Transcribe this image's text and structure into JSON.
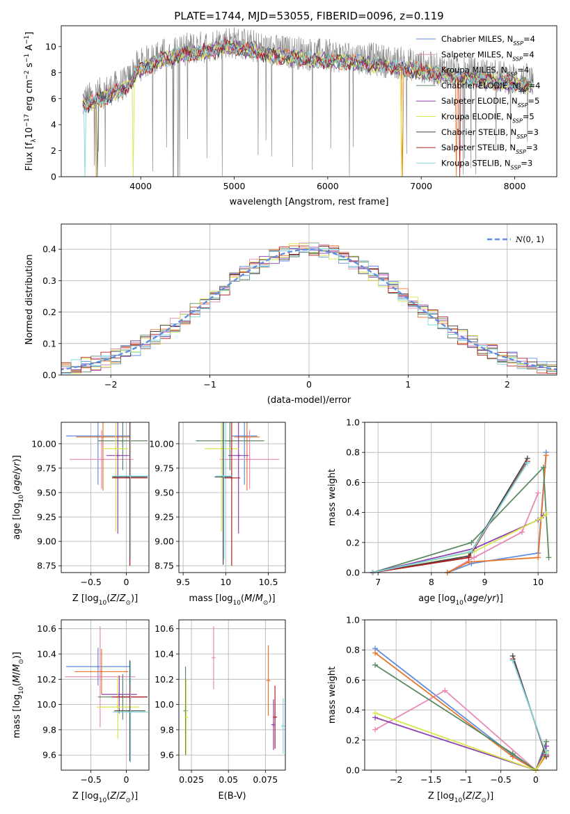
{
  "figure": {
    "title": "PLATE=1744, MJD=53055, FIBERID=0096, z=0.119"
  },
  "chart_data": [
    {
      "id": "spectrum",
      "type": "line",
      "xlabel": "wavelength [Angstrom, rest frame]",
      "ylabel": "Flux [fλ10⁻¹⁷ erg cm⁻² s⁻¹ A⁻¹]",
      "xlim": [
        3150,
        8450
      ],
      "ylim": [
        0,
        11.6
      ],
      "xticks": [
        4000,
        5000,
        6000,
        7000,
        8000
      ],
      "yticks": [
        0,
        2,
        4,
        6,
        8,
        10
      ],
      "data_range": [
        3380,
        8200
      ],
      "continuum": [
        [
          3380,
          5.9
        ],
        [
          3450,
          6.0
        ],
        [
          3550,
          6.3
        ],
        [
          3700,
          6.8
        ],
        [
          3850,
          7.2
        ],
        [
          3950,
          8.4
        ],
        [
          4050,
          8.8
        ],
        [
          4200,
          9.3
        ],
        [
          4400,
          9.7
        ],
        [
          4700,
          10.0
        ],
        [
          4900,
          10.4
        ],
        [
          5100,
          10.2
        ],
        [
          5400,
          9.7
        ],
        [
          5700,
          9.5
        ],
        [
          6000,
          9.3
        ],
        [
          6300,
          9.2
        ],
        [
          6600,
          8.9
        ],
        [
          6900,
          8.6
        ],
        [
          7200,
          8.2
        ],
        [
          7500,
          8.0
        ],
        [
          7800,
          7.7
        ],
        [
          8000,
          7.5
        ],
        [
          8200,
          7.4
        ]
      ],
      "legend": [
        {
          "label": "Chabrier MILES, N",
          "sub": "SSP",
          "suffix": "=4",
          "color": "#5f8ee0"
        },
        {
          "label": "Salpeter MILES, N",
          "sub": "SSP",
          "suffix": "=4",
          "color": "#e88ab8"
        },
        {
          "label": "Kroupa MILES, N",
          "sub": "SSP",
          "suffix": "=4",
          "color": "#e8762a"
        },
        {
          "label": "Chabrier ELODIE, N",
          "sub": "SSP",
          "suffix": "=4",
          "color": "#5a8a62"
        },
        {
          "label": "Salpeter ELODIE, N",
          "sub": "SSP",
          "suffix": "=5",
          "color": "#8e3fb0"
        },
        {
          "label": "Kroupa ELODIE, N",
          "sub": "SSP",
          "suffix": "=5",
          "color": "#d8e64a"
        },
        {
          "label": "Chabrier STELIB, N",
          "sub": "SSP",
          "suffix": "=3",
          "color": "#444444"
        },
        {
          "label": "Salpeter STELIB, N",
          "sub": "SSP",
          "suffix": "=3",
          "color": "#b02020"
        },
        {
          "label": "Kroupa STELIB, N",
          "sub": "SSP",
          "suffix": "=3",
          "color": "#80d8e0"
        }
      ]
    },
    {
      "id": "residuals",
      "type": "line",
      "xlabel": "(data-model)/error",
      "ylabel": "Normed distribution",
      "xlim": [
        -2.5,
        2.5
      ],
      "ylim": [
        0,
        0.48
      ],
      "xticks": [
        -2,
        -1,
        0,
        1,
        2
      ],
      "yticks": [
        0.0,
        0.1,
        0.2,
        0.3,
        0.4
      ],
      "gaussian_label": "N(0, 1)",
      "bin_width": 0.1
    },
    {
      "id": "age_vs_Z",
      "type": "scatter",
      "xlabel": "Z [log10(Z/Z⊙)]",
      "ylabel": "age  [log10(age/yr)]",
      "xlim": [
        -0.92,
        0.32
      ],
      "ylim": [
        8.68,
        10.22
      ],
      "xticks": [
        -0.5,
        0.0
      ],
      "yticks": [
        8.75,
        9.0,
        9.25,
        9.5,
        9.75,
        10.0
      ],
      "points": [
        {
          "x": -0.4,
          "y": 10.08,
          "xerr": 0.45,
          "yerr": 0.5,
          "color": "#5f8ee0"
        },
        {
          "x": -0.35,
          "y": 9.84,
          "xerr": 0.45,
          "yerr": 0.3,
          "color": "#e88ab8"
        },
        {
          "x": -0.33,
          "y": 10.07,
          "xerr": 0.38,
          "yerr": 0.55,
          "color": "#e8762a"
        },
        {
          "x": -0.05,
          "y": 10.03,
          "xerr": 0.35,
          "yerr": 0.3,
          "color": "#5a8a62"
        },
        {
          "x": -0.12,
          "y": 9.88,
          "xerr": 0.16,
          "yerr": 0.8,
          "color": "#8e3fb0"
        },
        {
          "x": -0.15,
          "y": 9.95,
          "xerr": 0.18,
          "yerr": 0.85,
          "color": "#d8e64a"
        },
        {
          "x": 0.05,
          "y": 9.66,
          "xerr": 0.25,
          "yerr": 0.9,
          "color": "#444444"
        },
        {
          "x": 0.05,
          "y": 9.65,
          "xerr": 0.25,
          "yerr": 0.9,
          "color": "#b02020"
        },
        {
          "x": 0.06,
          "y": 9.67,
          "xerr": 0.25,
          "yerr": 0.85,
          "color": "#80d8e0"
        }
      ]
    },
    {
      "id": "age_vs_mass",
      "type": "scatter",
      "xlabel": "mass [log10(M/M⊙)]",
      "ylabel": "",
      "xlim": [
        9.45,
        10.7
      ],
      "ylim": [
        8.68,
        10.22
      ],
      "xticks": [
        9.5,
        10.0,
        10.5
      ],
      "yticks": [
        8.75,
        9.0,
        9.25,
        9.5,
        9.75,
        10.0
      ],
      "points": [
        {
          "x": 10.22,
          "y": 10.08,
          "xerr": 0.15,
          "yerr": 0.5,
          "color": "#5f8ee0"
        },
        {
          "x": 10.28,
          "y": 9.84,
          "xerr": 0.35,
          "yerr": 0.3,
          "color": "#e88ab8"
        },
        {
          "x": 10.25,
          "y": 10.07,
          "xerr": 0.15,
          "yerr": 0.55,
          "color": "#e8762a"
        },
        {
          "x": 10.05,
          "y": 10.03,
          "xerr": 0.4,
          "yerr": 0.3,
          "color": "#5a8a62"
        },
        {
          "x": 10.15,
          "y": 9.88,
          "xerr": 0.12,
          "yerr": 0.8,
          "color": "#8e3fb0"
        },
        {
          "x": 9.95,
          "y": 9.95,
          "xerr": 0.2,
          "yerr": 0.85,
          "color": "#d8e64a"
        },
        {
          "x": 9.97,
          "y": 9.66,
          "xerr": 0.1,
          "yerr": 0.9,
          "color": "#444444"
        },
        {
          "x": 10.07,
          "y": 9.65,
          "xerr": 0.1,
          "yerr": 0.9,
          "color": "#b02020"
        },
        {
          "x": 9.98,
          "y": 9.67,
          "xerr": 0.1,
          "yerr": 0.85,
          "color": "#80d8e0"
        }
      ]
    },
    {
      "id": "weight_vs_age",
      "type": "line",
      "xlabel": "age  [log10(age/yr)]",
      "ylabel": "mass weight",
      "xlim": [
        6.75,
        10.35
      ],
      "ylim": [
        0,
        1.0
      ],
      "xticks": [
        7,
        8,
        9,
        10
      ],
      "yticks": [
        0.0,
        0.2,
        0.4,
        0.6,
        0.8,
        1.0
      ],
      "series": [
        {
          "color": "#5f8ee0",
          "points": [
            [
              8.3,
              0.0
            ],
            [
              8.75,
              0.06
            ],
            [
              10.0,
              0.13
            ],
            [
              10.15,
              0.8
            ]
          ]
        },
        {
          "color": "#e88ab8",
          "points": [
            [
              8.3,
              0.0
            ],
            [
              8.8,
              0.1
            ],
            [
              9.7,
              0.27
            ],
            [
              10.0,
              0.53
            ]
          ]
        },
        {
          "color": "#e8762a",
          "points": [
            [
              8.3,
              0.0
            ],
            [
              8.7,
              0.07
            ],
            [
              10.0,
              0.1
            ],
            [
              10.15,
              0.78
            ]
          ]
        },
        {
          "color": "#5a8a62",
          "points": [
            [
              6.9,
              0.0
            ],
            [
              8.75,
              0.2
            ],
            [
              10.1,
              0.7
            ],
            [
              10.2,
              0.1
            ]
          ]
        },
        {
          "color": "#8e3fb0",
          "points": [
            [
              6.9,
              0.0
            ],
            [
              8.8,
              0.16
            ],
            [
              10.0,
              0.35
            ],
            [
              10.1,
              0.38
            ]
          ]
        },
        {
          "color": "#d8e64a",
          "points": [
            [
              6.9,
              0.0
            ],
            [
              8.8,
              0.14
            ],
            [
              10.05,
              0.36
            ],
            [
              10.15,
              0.39
            ]
          ]
        },
        {
          "color": "#444444",
          "points": [
            [
              6.9,
              0.0
            ],
            [
              8.7,
              0.11
            ],
            [
              9.8,
              0.76
            ]
          ]
        },
        {
          "color": "#b02020",
          "points": [
            [
              6.9,
              0.0
            ],
            [
              8.7,
              0.1
            ],
            [
              9.8,
              0.74
            ]
          ]
        },
        {
          "color": "#80d8e0",
          "points": [
            [
              6.9,
              0.0
            ],
            [
              8.75,
              0.14
            ],
            [
              9.8,
              0.73
            ]
          ]
        }
      ]
    },
    {
      "id": "mass_vs_Z",
      "type": "scatter",
      "xlabel": "Z [log10(Z/Z⊙)]",
      "ylabel": "mass [log10(M/M⊙)]",
      "xlim": [
        -0.92,
        0.32
      ],
      "ylim": [
        9.48,
        10.67
      ],
      "xticks": [
        -0.5,
        0.0
      ],
      "yticks": [
        9.6,
        9.8,
        10.0,
        10.2,
        10.4,
        10.6
      ],
      "points": [
        {
          "x": -0.4,
          "y": 10.3,
          "xerr": 0.45,
          "yerr": 0.15,
          "color": "#5f8ee0"
        },
        {
          "x": -0.37,
          "y": 10.22,
          "xerr": 0.5,
          "yerr": 0.4,
          "color": "#e88ab8"
        },
        {
          "x": -0.35,
          "y": 10.26,
          "xerr": 0.38,
          "yerr": 0.18,
          "color": "#e8762a"
        },
        {
          "x": -0.05,
          "y": 10.06,
          "xerr": 0.35,
          "yerr": 0.18,
          "color": "#5a8a62"
        },
        {
          "x": -0.1,
          "y": 10.08,
          "xerr": 0.25,
          "yerr": 0.15,
          "color": "#8e3fb0"
        },
        {
          "x": -0.12,
          "y": 9.98,
          "xerr": 0.3,
          "yerr": 0.25,
          "color": "#d8e64a"
        },
        {
          "x": 0.05,
          "y": 9.95,
          "xerr": 0.22,
          "yerr": 0.4,
          "color": "#444444"
        },
        {
          "x": 0.05,
          "y": 10.06,
          "xerr": 0.25,
          "yerr": 0.1,
          "color": "#b02020"
        },
        {
          "x": 0.06,
          "y": 9.94,
          "xerr": 0.25,
          "yerr": 0.4,
          "color": "#80d8e0"
        }
      ]
    },
    {
      "id": "mass_vs_EBV",
      "type": "scatter",
      "xlabel": "E(B-V)",
      "ylabel": "",
      "xlim": [
        0.0165,
        0.0885
      ],
      "ylim": [
        9.48,
        10.67
      ],
      "xticks": [
        0.025,
        0.05,
        0.075
      ],
      "yticks": [
        9.6,
        9.8,
        10.0,
        10.2,
        10.4,
        10.6
      ],
      "points": [
        {
          "x": 0.021,
          "y": 9.95,
          "yerr": 0.35,
          "color": "#5a8a62"
        },
        {
          "x": 0.0215,
          "y": 9.9,
          "yerr": 0.3,
          "color": "#d8e64a"
        },
        {
          "x": 0.04,
          "y": 10.37,
          "yerr": 0.25,
          "color": "#e88ab8"
        },
        {
          "x": 0.077,
          "y": 10.19,
          "yerr": 0.28,
          "color": "#e8762a"
        },
        {
          "x": 0.0815,
          "y": 9.9,
          "yerr": 0.25,
          "color": "#b02020"
        },
        {
          "x": 0.0805,
          "y": 9.84,
          "yerr": 0.2,
          "color": "#8e3fb0"
        },
        {
          "x": 0.087,
          "y": 9.83,
          "yerr": 0.22,
          "color": "#80d8e0"
        }
      ]
    },
    {
      "id": "weight_vs_Z",
      "type": "line",
      "xlabel": "Z [log10(Z/Z⊙)]",
      "ylabel": "mass weight",
      "xlim": [
        -2.45,
        0.3
      ],
      "ylim": [
        0,
        1.0
      ],
      "xticks": [
        -2.0,
        -1.5,
        -1.0,
        -0.5,
        0.0
      ],
      "yticks": [
        0.0,
        0.2,
        0.4,
        0.6,
        0.8,
        1.0
      ],
      "series": [
        {
          "color": "#5f8ee0",
          "points": [
            [
              -2.3,
              0.81
            ],
            [
              -0.33,
              0.1
            ],
            [
              0.0,
              0.0
            ],
            [
              0.15,
              0.13
            ]
          ]
        },
        {
          "color": "#e88ab8",
          "points": [
            [
              -2.3,
              0.27
            ],
            [
              -1.3,
              0.53
            ],
            [
              0.0,
              0.0
            ],
            [
              0.15,
              0.1
            ]
          ]
        },
        {
          "color": "#e8762a",
          "points": [
            [
              -2.3,
              0.78
            ],
            [
              -0.33,
              0.09
            ],
            [
              0.0,
              0.0
            ],
            [
              0.15,
              0.1
            ]
          ]
        },
        {
          "color": "#5a8a62",
          "points": [
            [
              -2.3,
              0.7
            ],
            [
              -0.33,
              0.11
            ],
            [
              0.0,
              0.0
            ],
            [
              0.15,
              0.19
            ]
          ]
        },
        {
          "color": "#8e3fb0",
          "points": [
            [
              -2.3,
              0.35
            ],
            [
              0.0,
              0.0
            ],
            [
              0.15,
              0.16
            ]
          ]
        },
        {
          "color": "#d8e64a",
          "points": [
            [
              -2.3,
              0.38
            ],
            [
              0.0,
              0.0
            ],
            [
              0.15,
              0.12
            ]
          ]
        },
        {
          "color": "#444444",
          "points": [
            [
              -0.33,
              0.76
            ],
            [
              0.15,
              0.09
            ]
          ]
        },
        {
          "color": "#b02020",
          "points": [
            [
              -0.33,
              0.74
            ],
            [
              0.15,
              0.1
            ]
          ]
        },
        {
          "color": "#80d8e0",
          "points": [
            [
              -0.33,
              0.73
            ],
            [
              0.15,
              0.11
            ]
          ]
        }
      ]
    }
  ]
}
